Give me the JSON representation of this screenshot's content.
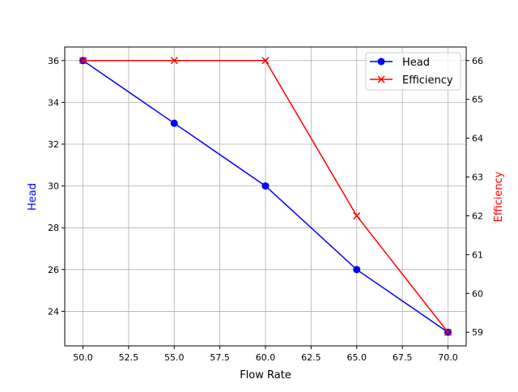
{
  "chart_data": {
    "type": "line",
    "title": "",
    "xlabel": "Flow Rate",
    "ylabel": "Head",
    "y2label": "Efficiency",
    "x": [
      50,
      55,
      60,
      65,
      70
    ],
    "series": [
      {
        "name": "Head",
        "axis": "left",
        "color": "#0000ff",
        "marker": "circle",
        "values": [
          36,
          33,
          30,
          26,
          23
        ]
      },
      {
        "name": "Efficiency",
        "axis": "right",
        "color": "#ff0000",
        "marker": "x",
        "values": [
          66,
          66,
          66,
          62,
          59
        ]
      }
    ],
    "xlim": [
      49,
      71
    ],
    "ylim": [
      22.35,
      36.65
    ],
    "y2lim": [
      58.65,
      66.35
    ],
    "x_ticks": [
      "50.0",
      "52.5",
      "55.0",
      "57.5",
      "60.0",
      "62.5",
      "65.0",
      "67.5",
      "70.0"
    ],
    "y_ticks": [
      "24",
      "26",
      "28",
      "30",
      "32",
      "34",
      "36"
    ],
    "y2_ticks": [
      "59",
      "60",
      "61",
      "62",
      "63",
      "64",
      "65",
      "66"
    ],
    "grid": true,
    "legend_position": "upper right"
  },
  "legend": {
    "items": [
      "Head",
      "Efficiency"
    ]
  }
}
